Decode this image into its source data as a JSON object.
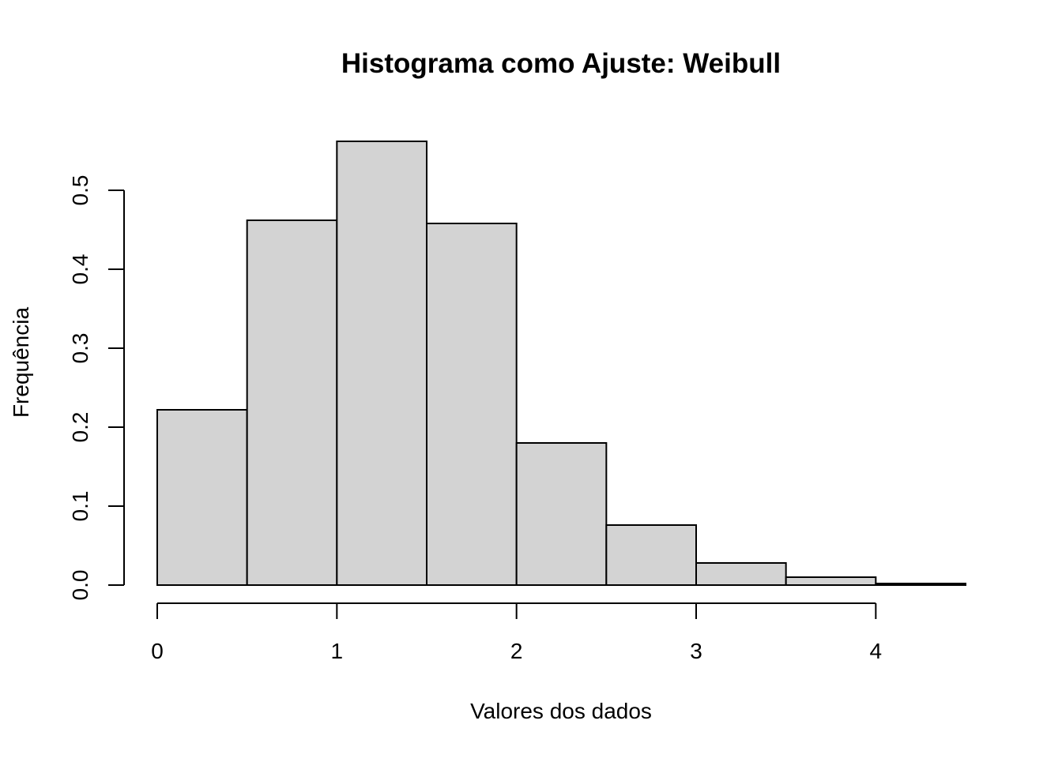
{
  "chart_data": {
    "type": "bar",
    "title": "Histograma como Ajuste: Weibull",
    "xlabel": "Valores dos dados",
    "ylabel": "Frequência",
    "bin_edges": [
      0,
      0.5,
      1,
      1.5,
      2,
      2.5,
      3,
      3.5,
      4,
      4.5
    ],
    "values": [
      0.222,
      0.462,
      0.562,
      0.458,
      0.18,
      0.076,
      0.028,
      0.01,
      0.002
    ],
    "xlim": [
      0,
      4.5
    ],
    "ylim": [
      0,
      0.562
    ],
    "x_ticks": [
      "0",
      "1",
      "2",
      "3",
      "4"
    ],
    "y_ticks": [
      "0.0",
      "0.1",
      "0.2",
      "0.3",
      "0.4",
      "0.5"
    ],
    "bar_color": "#d3d3d3",
    "grid": false
  }
}
